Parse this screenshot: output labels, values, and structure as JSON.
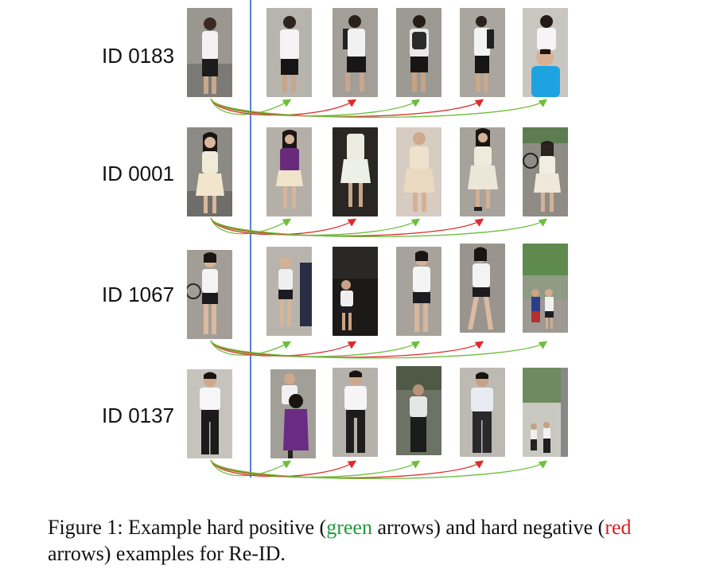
{
  "rows": [
    {
      "label": "ID 0183"
    },
    {
      "label": "ID 0001"
    },
    {
      "label": "ID 1067"
    },
    {
      "label": "ID 0137"
    }
  ],
  "arrow_colors": {
    "positive": "#6cbf3a",
    "negative": "#e02a2a"
  },
  "caption": {
    "prefix": "Figure 1:  Example hard positive (",
    "green_word": "green",
    "middle": " arrows) and hard negative (",
    "red_word": "red",
    "suffix": " arrows) examples for Re-ID."
  }
}
